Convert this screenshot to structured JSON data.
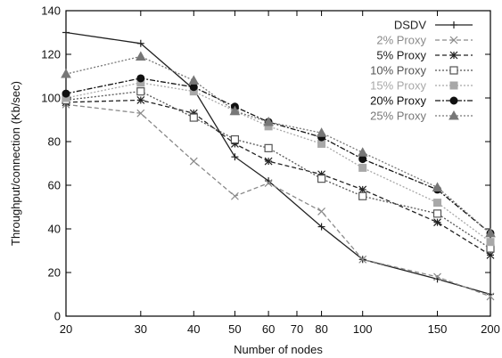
{
  "chart_data": {
    "type": "line",
    "xlabel": "Number of nodes",
    "ylabel": "Throughput/connection (Kb/sec)",
    "xscale": "log",
    "xlim": [
      20,
      200
    ],
    "ylim": [
      0,
      140
    ],
    "xticks": [
      20,
      30,
      40,
      50,
      60,
      70,
      80,
      100,
      150,
      200
    ],
    "yticks": [
      0,
      20,
      40,
      60,
      80,
      100,
      120,
      140
    ],
    "grid": false,
    "legend_position": "top-right",
    "series": [
      {
        "name": "DSDV",
        "marker": "plus",
        "dash": "solid",
        "color": "#222222",
        "x": [
          20,
          30,
          40,
          50,
          60,
          80,
          100,
          150,
          200
        ],
        "y": [
          130,
          125,
          104,
          73,
          62,
          41,
          26,
          17,
          10
        ]
      },
      {
        "name": "2% Proxy",
        "marker": "x",
        "dash": "dashed",
        "color": "#8a8a8a",
        "x": [
          20,
          30,
          40,
          50,
          60,
          80,
          100,
          150,
          200
        ],
        "y": [
          97,
          93,
          71,
          55,
          61,
          48,
          26,
          18,
          9
        ]
      },
      {
        "name": "5% Proxy",
        "marker": "star",
        "dash": "dashed",
        "color": "#222222",
        "x": [
          20,
          30,
          40,
          50,
          60,
          80,
          100,
          150,
          200
        ],
        "y": [
          98,
          99,
          93,
          79,
          71,
          65,
          58,
          43,
          28
        ]
      },
      {
        "name": "10% Proxy",
        "marker": "square",
        "dash": "dotted",
        "color": "#555555",
        "x": [
          20,
          30,
          40,
          50,
          60,
          80,
          100,
          150,
          200
        ],
        "y": [
          99,
          103,
          91,
          81,
          77,
          63,
          55,
          47,
          31
        ]
      },
      {
        "name": "15% Proxy",
        "marker": "filled-square",
        "dash": "dotted",
        "color": "#a8a8a8",
        "x": [
          20,
          30,
          40,
          50,
          60,
          80,
          100,
          150,
          200
        ],
        "y": [
          100,
          107,
          103,
          94,
          87,
          79,
          68,
          52,
          34
        ]
      },
      {
        "name": "20% Proxy",
        "marker": "circle",
        "dash": "dashdot",
        "color": "#111111",
        "x": [
          20,
          30,
          40,
          50,
          60,
          80,
          100,
          150,
          200
        ],
        "y": [
          102,
          109,
          105,
          96,
          89,
          82,
          72,
          58,
          38
        ]
      },
      {
        "name": "25% Proxy",
        "marker": "triangle",
        "dash": "dotted",
        "color": "#777777",
        "x": [
          20,
          30,
          40,
          50,
          60,
          80,
          100,
          150,
          200
        ],
        "y": [
          111,
          119,
          108,
          94,
          89,
          84,
          75,
          59,
          38
        ]
      }
    ]
  }
}
